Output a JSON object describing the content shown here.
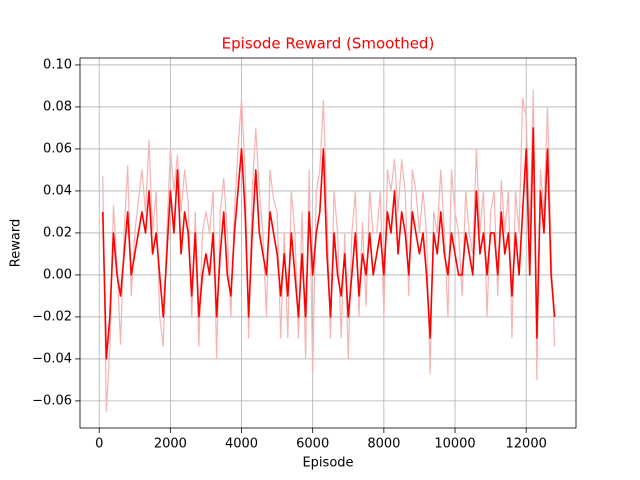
{
  "chart_data": {
    "type": "line",
    "title": "Episode Reward (Smoothed)",
    "title_color": "#ff0000",
    "x_label": "Episode",
    "y_label": "Reward",
    "grid": true,
    "xlim": [
      -540,
      13400
    ],
    "ylim": [
      -0.0729,
      0.1033
    ],
    "xticks": [
      0,
      2000,
      4000,
      6000,
      8000,
      10000,
      12000
    ],
    "yticks": [
      {
        "value": -0.06,
        "label": "−0.06"
      },
      {
        "value": -0.04,
        "label": "−0.04"
      },
      {
        "value": -0.02,
        "label": "−0.02"
      },
      {
        "value": 0,
        "label": "0.00"
      },
      {
        "value": 0.02,
        "label": "0.02"
      },
      {
        "value": 0.04,
        "label": "0.04"
      },
      {
        "value": 0.06,
        "label": "0.06"
      },
      {
        "value": 0.08,
        "label": "0.08"
      },
      {
        "value": 0.1,
        "label": "0.10"
      }
    ],
    "x": [
      100,
      200,
      300,
      400,
      500,
      600,
      700,
      800,
      900,
      1000,
      1100,
      1200,
      1300,
      1400,
      1500,
      1600,
      1700,
      1800,
      1900,
      2000,
      2100,
      2200,
      2300,
      2400,
      2500,
      2600,
      2700,
      2800,
      2900,
      3000,
      3100,
      3200,
      3300,
      3400,
      3500,
      3600,
      3700,
      3800,
      3900,
      4000,
      4100,
      4200,
      4300,
      4400,
      4500,
      4600,
      4700,
      4800,
      4900,
      5000,
      5100,
      5200,
      5300,
      5400,
      5500,
      5600,
      5700,
      5800,
      5900,
      6000,
      6100,
      6200,
      6300,
      6400,
      6500,
      6600,
      6700,
      6800,
      6900,
      7000,
      7100,
      7200,
      7300,
      7400,
      7500,
      7600,
      7700,
      7800,
      7900,
      8000,
      8100,
      8200,
      8300,
      8400,
      8500,
      8600,
      8700,
      8800,
      8900,
      9000,
      9100,
      9200,
      9300,
      9400,
      9500,
      9600,
      9700,
      9800,
      9900,
      10000,
      10100,
      10200,
      10300,
      10400,
      10500,
      10600,
      10700,
      10800,
      10900,
      11000,
      11100,
      11200,
      11300,
      11400,
      11500,
      11600,
      11700,
      11800,
      11900,
      12000,
      12100,
      12200,
      12300,
      12400,
      12500,
      12600,
      12700,
      12800
    ],
    "series": [
      {
        "color": "#f5b3b3",
        "values": [
          0.047,
          -0.065,
          -0.035,
          0.033,
          0.005,
          -0.033,
          0.02,
          0.052,
          -0.01,
          0.02,
          0.035,
          0.05,
          0.03,
          0.064,
          0.02,
          0.04,
          -0.02,
          -0.034,
          0.02,
          0.06,
          0.04,
          0.057,
          0.03,
          0.05,
          0.035,
          -0.02,
          0.03,
          -0.034,
          0.02,
          0.03,
          0.02,
          0.04,
          -0.04,
          0.03,
          0.046,
          0.02,
          -0.02,
          0.03,
          0.06,
          0.084,
          0.05,
          -0.03,
          0.04,
          0.07,
          0.04,
          0.02,
          -0.02,
          0.05,
          0.036,
          0.03,
          -0.03,
          0.02,
          -0.03,
          0.04,
          0.02,
          -0.03,
          0.03,
          -0.04,
          0.05,
          -0.047,
          0.04,
          0.05,
          0.083,
          0.03,
          -0.03,
          0.04,
          0.02,
          -0.03,
          0.02,
          -0.04,
          0.02,
          0.04,
          -0.02,
          0.025,
          -0.015,
          0.04,
          0.02,
          0.02,
          0.04,
          -0.02,
          0.05,
          0.04,
          0.055,
          0.03,
          0.055,
          0.04,
          -0.01,
          0.05,
          0.04,
          0.02,
          0.04,
          0.02,
          -0.047,
          0.03,
          0.02,
          0.05,
          0.02,
          -0.02,
          0.05,
          0.03,
          0.02,
          -0.01,
          0.04,
          0.02,
          0.01,
          0.06,
          0.02,
          0.04,
          -0.02,
          0.03,
          0.04,
          -0.01,
          0.045,
          0.02,
          0.04,
          -0.03,
          0.04,
          0.02,
          0.084,
          0.075,
          0.02,
          0.088,
          -0.05,
          0.05,
          0.03,
          0.08,
          0.01,
          -0.034
        ]
      },
      {
        "color": "#ff0000",
        "values": [
          0.03,
          -0.04,
          -0.02,
          0.02,
          0,
          -0.01,
          0.01,
          0.03,
          0,
          0.01,
          0.02,
          0.03,
          0.02,
          0.04,
          0.01,
          0.02,
          0,
          -0.02,
          0.01,
          0.04,
          0.02,
          0.05,
          0.01,
          0.03,
          0.02,
          -0.01,
          0.02,
          -0.02,
          0,
          0.01,
          0,
          0.02,
          -0.02,
          0.01,
          0.03,
          0,
          -0.01,
          0.02,
          0.04,
          0.06,
          0.03,
          -0.02,
          0.02,
          0.05,
          0.02,
          0.01,
          0,
          0.03,
          0.02,
          0.01,
          -0.01,
          0.01,
          -0.01,
          0.02,
          0,
          -0.02,
          0.01,
          -0.02,
          0.03,
          0,
          0.02,
          0.03,
          0.06,
          0.01,
          -0.02,
          0.02,
          0,
          -0.01,
          0.01,
          -0.02,
          0,
          0.02,
          -0.01,
          0.01,
          0,
          0.02,
          0,
          0.01,
          0.02,
          0,
          0.03,
          0.02,
          0.04,
          0.01,
          0.03,
          0.02,
          0,
          0.03,
          0.02,
          0.01,
          0.02,
          0,
          -0.03,
          0.02,
          0.01,
          0.03,
          0.01,
          0,
          0.02,
          0.01,
          0,
          0,
          0.02,
          0.01,
          0,
          0.04,
          0.01,
          0.02,
          0,
          0.02,
          0.02,
          0,
          0.03,
          0.01,
          0.02,
          -0.01,
          0.02,
          0,
          0.03,
          0.06,
          0,
          0.07,
          -0.03,
          0.04,
          0.02,
          0.06,
          0,
          -0.02
        ]
      }
    ]
  }
}
